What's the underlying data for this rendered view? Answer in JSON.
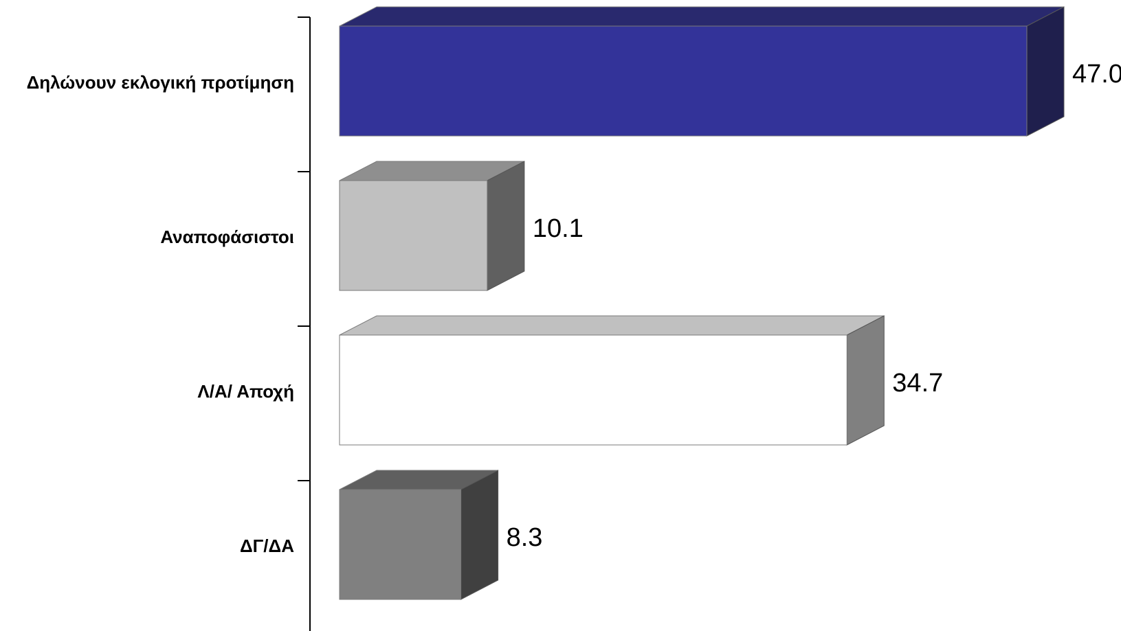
{
  "chart_data": {
    "type": "bar",
    "orientation": "horizontal",
    "style": "3d",
    "categories": [
      "Δηλώνουν εκλογική προτίμηση",
      "Αναποφάσιστοι",
      "Λ/Α/ Αποχή",
      "ΔΓ/ΔΑ"
    ],
    "values": [
      47.0,
      10.1,
      34.7,
      8.3
    ],
    "value_labels": [
      "47.0",
      "10.1",
      "34.7",
      "8.3"
    ],
    "colors": [
      {
        "front": "#333399",
        "top": "#29296e",
        "side": "#1f1f4d"
      },
      {
        "front": "#c0c0c0",
        "top": "#8f8f8f",
        "side": "#606060"
      },
      {
        "front": "#ffffff",
        "top": "#c0c0c0",
        "side": "#808080"
      },
      {
        "front": "#808080",
        "top": "#5f5f5f",
        "side": "#404040"
      }
    ],
    "title": "",
    "xlabel": "",
    "ylabel": "",
    "xlim": [
      0,
      47.0
    ],
    "grid": false,
    "legend": false
  }
}
